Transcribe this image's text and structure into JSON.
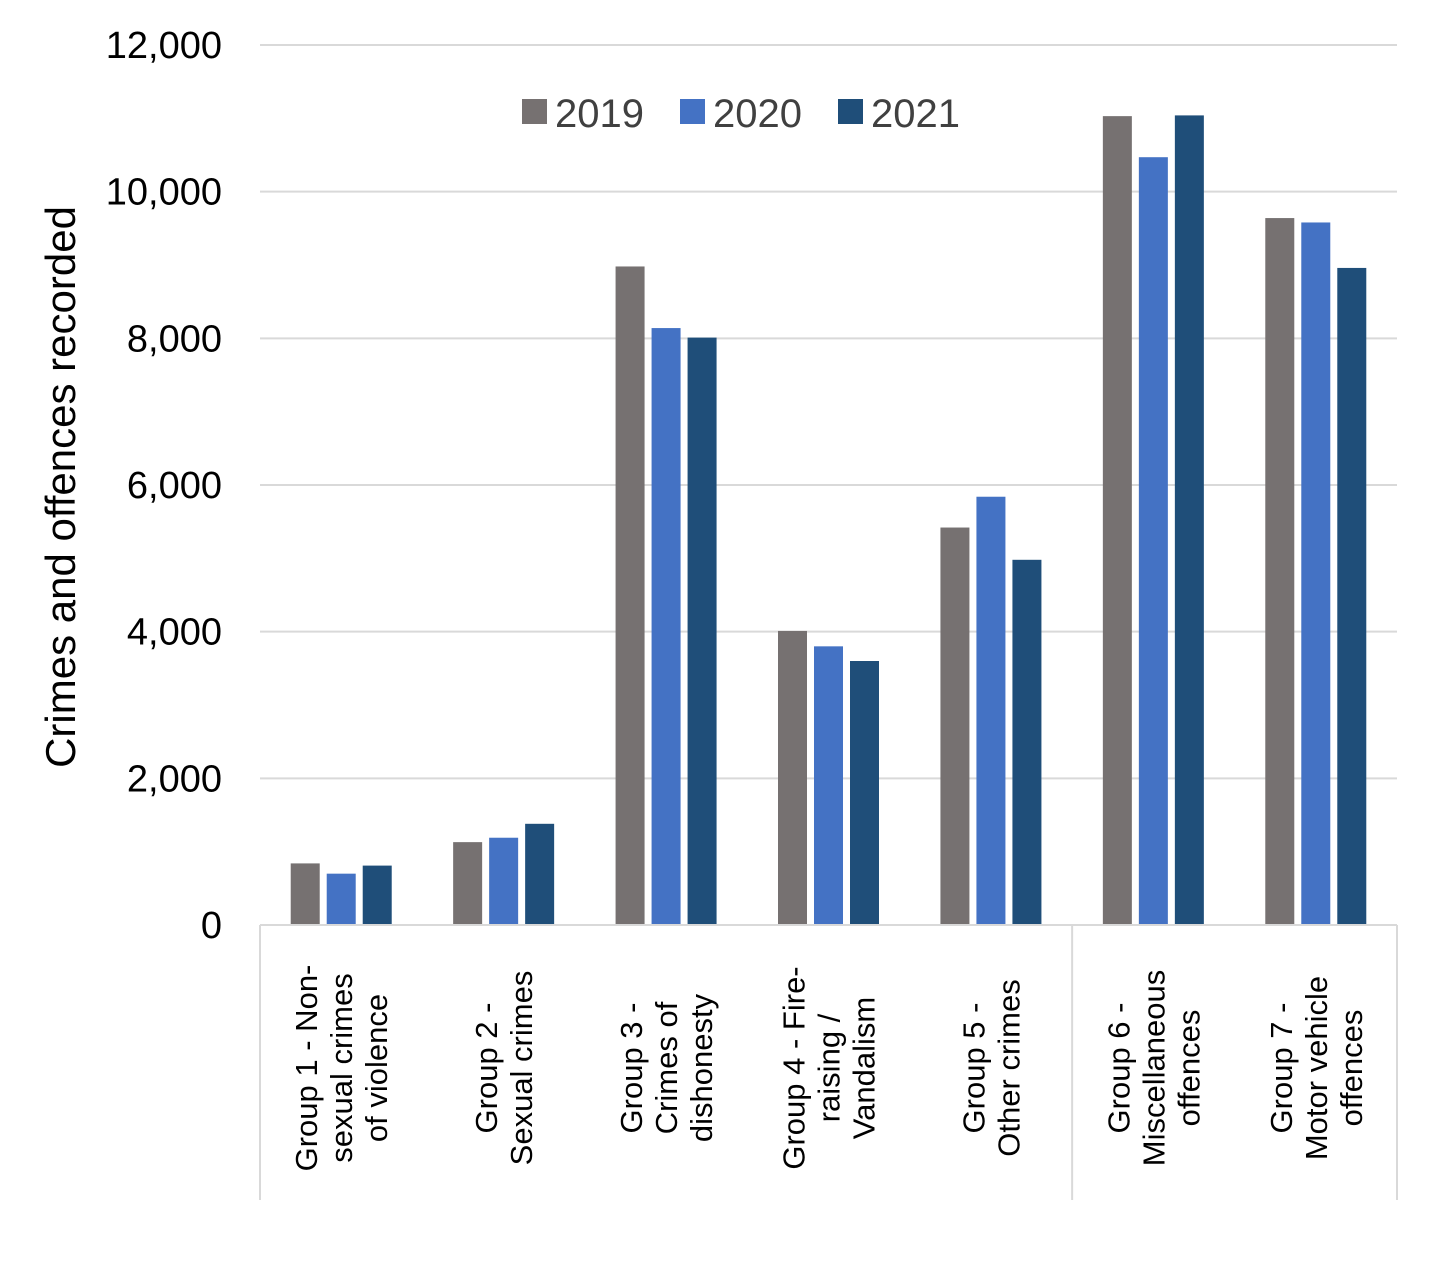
{
  "chart_data": {
    "type": "bar",
    "title": "",
    "xlabel": "",
    "ylabel": "Crimes and offences recorded",
    "ylim": [
      0,
      12000
    ],
    "yticks": [
      0,
      2000,
      4000,
      6000,
      8000,
      10000,
      12000
    ],
    "ytick_labels": [
      "0",
      "2,000",
      "4,000",
      "6,000",
      "8,000",
      "10,000",
      "12,000"
    ],
    "grid": true,
    "legend_position": "top-center",
    "categories": [
      [
        "Group 1 - Non-",
        "sexual crimes",
        "of violence"
      ],
      [
        "Group 2 -",
        "Sexual crimes"
      ],
      [
        "Group 3 -",
        "Crimes of",
        "dishonesty"
      ],
      [
        "Group 4 - Fire-",
        "raising /",
        "Vandalism"
      ],
      [
        "Group 5 -",
        "Other crimes"
      ],
      [
        "Group 6 -",
        "Miscellaneous",
        "offences"
      ],
      [
        "Group 7 -",
        "Motor vehicle",
        "offences"
      ]
    ],
    "series": [
      {
        "name": "2019",
        "color": "#767171",
        "values": [
          840,
          1130,
          8980,
          4010,
          5420,
          11030,
          9640
        ]
      },
      {
        "name": "2020",
        "color": "#4472C4",
        "values": [
          700,
          1190,
          8140,
          3800,
          5840,
          10470,
          9580
        ]
      },
      {
        "name": "2021",
        "color": "#1F4E79",
        "values": [
          810,
          1380,
          8010,
          3600,
          4980,
          11040,
          8960
        ]
      }
    ]
  }
}
